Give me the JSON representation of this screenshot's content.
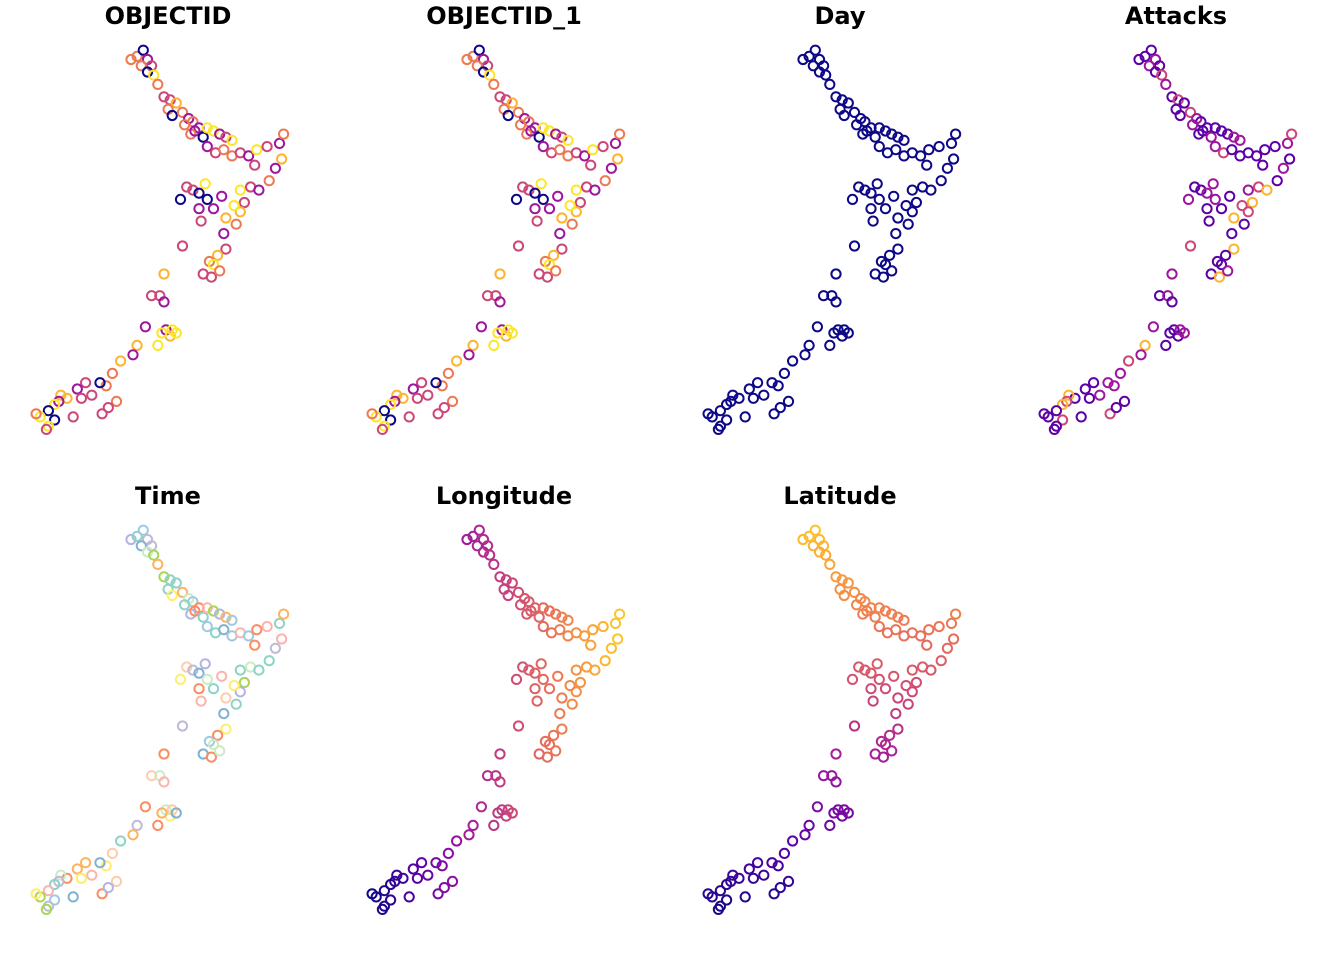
{
  "chart_data": {
    "type": "scatter",
    "layout": "small-multiples",
    "grid": false,
    "legend": "none",
    "marker": "open-circle",
    "x_axis_shown": false,
    "y_axis_shown": false,
    "xlim": [
      166.3,
      179.0
    ],
    "ylim": [
      -47.3,
      -34.3
    ],
    "panels": [
      {
        "title": "OBJECTID",
        "color_mode": "random-plasma"
      },
      {
        "title": "OBJECTID_1",
        "color_mode": "random-plasma"
      },
      {
        "title": "Day",
        "color_mode": "constant",
        "color": "#0d0887"
      },
      {
        "title": "Attacks",
        "color_mode": "attacks-plasma"
      },
      {
        "title": "Time",
        "color_mode": "random-qualitative"
      },
      {
        "title": "Longitude",
        "color_mode": "by-longitude"
      },
      {
        "title": "Latitude",
        "color_mode": "by-latitude"
      }
    ],
    "points": [
      [
        171.0,
        -34.8
      ],
      [
        171.3,
        -34.7
      ],
      [
        171.6,
        -34.5
      ],
      [
        171.8,
        -34.8
      ],
      [
        172.0,
        -35.0
      ],
      [
        171.5,
        -35.0
      ],
      [
        171.8,
        -35.2
      ],
      [
        172.1,
        -35.3
      ],
      [
        172.3,
        -35.6
      ],
      [
        172.6,
        -36.0
      ],
      [
        172.9,
        -36.1
      ],
      [
        173.2,
        -36.2
      ],
      [
        172.8,
        -36.4
      ],
      [
        173.0,
        -36.6
      ],
      [
        173.5,
        -36.5
      ],
      [
        173.8,
        -36.7
      ],
      [
        174.0,
        -36.8
      ],
      [
        174.3,
        -37.0
      ],
      [
        173.6,
        -36.9
      ],
      [
        173.9,
        -37.2
      ],
      [
        174.1,
        -37.1
      ],
      [
        174.5,
        -37.3
      ],
      [
        174.7,
        -37.0
      ],
      [
        175.0,
        -37.1
      ],
      [
        175.3,
        -37.2
      ],
      [
        175.6,
        -37.3
      ],
      [
        175.9,
        -37.4
      ],
      [
        174.7,
        -37.6
      ],
      [
        175.1,
        -37.8
      ],
      [
        175.5,
        -37.7
      ],
      [
        175.9,
        -37.9
      ],
      [
        176.3,
        -37.8
      ],
      [
        176.7,
        -37.9
      ],
      [
        177.1,
        -37.7
      ],
      [
        177.6,
        -37.6
      ],
      [
        178.2,
        -37.5
      ],
      [
        178.4,
        -37.2
      ],
      [
        177.0,
        -38.2
      ],
      [
        178.0,
        -38.3
      ],
      [
        178.3,
        -38.0
      ],
      [
        173.7,
        -38.9
      ],
      [
        174.0,
        -39.0
      ],
      [
        174.3,
        -39.1
      ],
      [
        174.6,
        -38.8
      ],
      [
        175.4,
        -39.2
      ],
      [
        176.3,
        -39.0
      ],
      [
        176.8,
        -38.9
      ],
      [
        177.2,
        -39.0
      ],
      [
        177.7,
        -38.7
      ],
      [
        176.5,
        -39.4
      ],
      [
        176.3,
        -39.7
      ],
      [
        176.1,
        -40.1
      ],
      [
        175.5,
        -40.4
      ],
      [
        174.3,
        -39.6
      ],
      [
        174.4,
        -40.0
      ],
      [
        173.4,
        -39.3
      ],
      [
        174.7,
        -39.3
      ],
      [
        175.6,
        -40.9
      ],
      [
        175.2,
        -41.1
      ],
      [
        174.8,
        -41.3
      ],
      [
        175.0,
        -41.4
      ],
      [
        174.5,
        -41.7
      ],
      [
        174.9,
        -41.8
      ],
      [
        175.3,
        -41.6
      ],
      [
        173.5,
        -40.8
      ],
      [
        172.6,
        -41.7
      ],
      [
        172.0,
        -42.4
      ],
      [
        172.4,
        -42.4
      ],
      [
        172.6,
        -42.6
      ],
      [
        171.7,
        -43.4
      ],
      [
        171.3,
        -44.0
      ],
      [
        171.1,
        -44.3
      ],
      [
        172.7,
        -43.5
      ],
      [
        172.9,
        -43.7
      ],
      [
        173.0,
        -43.5
      ],
      [
        173.2,
        -43.6
      ],
      [
        172.5,
        -43.6
      ],
      [
        172.3,
        -44.0
      ],
      [
        170.5,
        -44.5
      ],
      [
        170.1,
        -44.9
      ],
      [
        169.8,
        -45.3
      ],
      [
        169.5,
        -45.2
      ],
      [
        169.1,
        -45.6
      ],
      [
        168.8,
        -45.2
      ],
      [
        168.4,
        -45.4
      ],
      [
        168.6,
        -45.7
      ],
      [
        167.9,
        -45.7
      ],
      [
        167.6,
        -45.6
      ],
      [
        167.5,
        -45.8
      ],
      [
        167.3,
        -45.9
      ],
      [
        167.0,
        -46.1
      ],
      [
        169.6,
        -46.2
      ],
      [
        170.3,
        -45.8
      ],
      [
        168.2,
        -46.3
      ],
      [
        167.3,
        -46.4
      ],
      [
        167.0,
        -46.6
      ],
      [
        166.9,
        -46.7
      ],
      [
        166.6,
        -46.3
      ],
      [
        166.4,
        -46.2
      ],
      [
        169.9,
        -46.0
      ],
      [
        175.0,
        -39.6
      ],
      [
        175.6,
        -39.9
      ],
      [
        176.0,
        -39.5
      ]
    ]
  }
}
